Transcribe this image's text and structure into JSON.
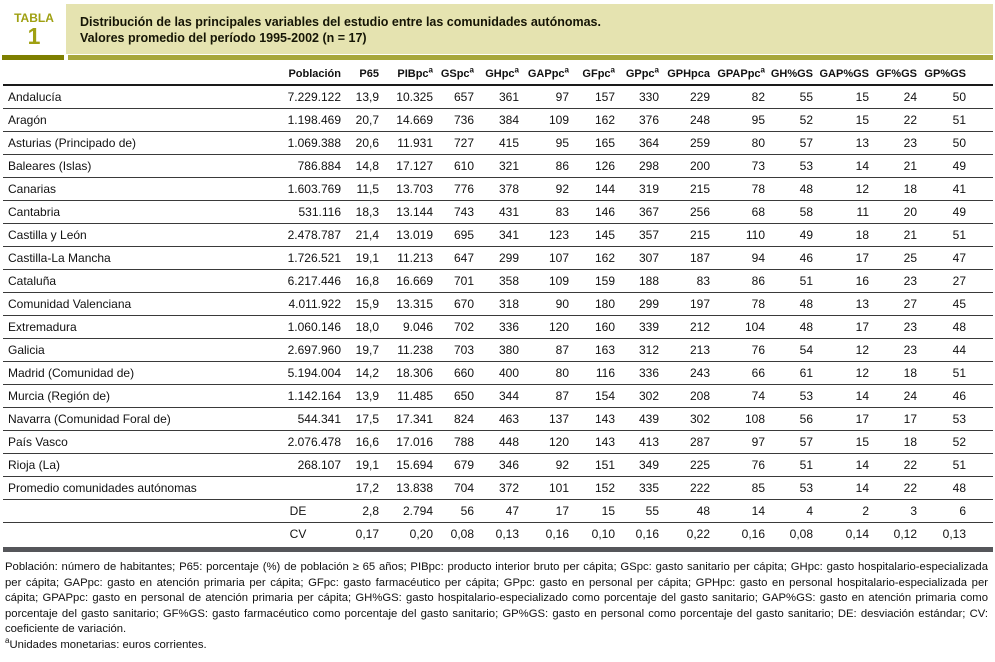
{
  "table_label": {
    "word": "TABLA",
    "number": "1"
  },
  "title": {
    "line1": "Distribución de las principales variables del estudio entre las comunidades autónomas.",
    "line2": "Valores promedio del período 1995-2002 (n = 17)"
  },
  "colors": {
    "accent_olive_text": "#9fa012",
    "title_box_bg": "#e5e3b0",
    "bar_dark_olive": "#7e7f00",
    "bar_light_olive": "#a7a73c",
    "bottom_bar_gray": "#55565a"
  },
  "table": {
    "columns": [
      {
        "text": "Población",
        "sup": ""
      },
      {
        "text": "P65",
        "sup": ""
      },
      {
        "text": "PIBpc",
        "sup": "a"
      },
      {
        "text": "GSpc",
        "sup": "a"
      },
      {
        "text": "GHpc",
        "sup": "a"
      },
      {
        "text": "GAPpc",
        "sup": "a"
      },
      {
        "text": "GFpc",
        "sup": "a"
      },
      {
        "text": "GPpc",
        "sup": "a"
      },
      {
        "text": "GPHpca",
        "sup": ""
      },
      {
        "text": "GPAPpc",
        "sup": "a"
      },
      {
        "text": "GH%GS",
        "sup": ""
      },
      {
        "text": "GAP%GS",
        "sup": ""
      },
      {
        "text": "GF%GS",
        "sup": ""
      },
      {
        "text": "GP%GS",
        "sup": ""
      }
    ],
    "rows": [
      {
        "label": "Andalucía",
        "cells": [
          "7.229.122",
          "13,9",
          "10.325",
          "657",
          "361",
          "97",
          "157",
          "330",
          "229",
          "82",
          "55",
          "15",
          "24",
          "50"
        ]
      },
      {
        "label": "Aragón",
        "cells": [
          "1.198.469",
          "20,7",
          "14.669",
          "736",
          "384",
          "109",
          "162",
          "376",
          "248",
          "95",
          "52",
          "15",
          "22",
          "51"
        ]
      },
      {
        "label": "Asturias (Principado de)",
        "cells": [
          "1.069.388",
          "20,6",
          "11.931",
          "727",
          "415",
          "95",
          "165",
          "364",
          "259",
          "80",
          "57",
          "13",
          "23",
          "50"
        ]
      },
      {
        "label": "Baleares (Islas)",
        "cells": [
          "786.884",
          "14,8",
          "17.127",
          "610",
          "321",
          "86",
          "126",
          "298",
          "200",
          "73",
          "53",
          "14",
          "21",
          "49"
        ]
      },
      {
        "label": "Canarias",
        "cells": [
          "1.603.769",
          "11,5",
          "13.703",
          "776",
          "378",
          "92",
          "144",
          "319",
          "215",
          "78",
          "48",
          "12",
          "18",
          "41"
        ]
      },
      {
        "label": "Cantabria",
        "cells": [
          "531.116",
          "18,3",
          "13.144",
          "743",
          "431",
          "83",
          "146",
          "367",
          "256",
          "68",
          "58",
          "11",
          "20",
          "49"
        ]
      },
      {
        "label": "Castilla y León",
        "cells": [
          "2.478.787",
          "21,4",
          "13.019",
          "695",
          "341",
          "123",
          "145",
          "357",
          "215",
          "110",
          "49",
          "18",
          "21",
          "51"
        ]
      },
      {
        "label": "Castilla-La Mancha",
        "cells": [
          "1.726.521",
          "19,1",
          "11.213",
          "647",
          "299",
          "107",
          "162",
          "307",
          "187",
          "94",
          "46",
          "17",
          "25",
          "47"
        ]
      },
      {
        "label": "Cataluña",
        "cells": [
          "6.217.446",
          "16,8",
          "16.669",
          "701",
          "358",
          "109",
          "159",
          "188",
          "83",
          "86",
          "51",
          "16",
          "23",
          "27"
        ]
      },
      {
        "label": "Comunidad Valenciana",
        "cells": [
          "4.011.922",
          "15,9",
          "13.315",
          "670",
          "318",
          "90",
          "180",
          "299",
          "197",
          "78",
          "48",
          "13",
          "27",
          "45"
        ]
      },
      {
        "label": "Extremadura",
        "cells": [
          "1.060.146",
          "18,0",
          "9.046",
          "702",
          "336",
          "120",
          "160",
          "339",
          "212",
          "104",
          "48",
          "17",
          "23",
          "48"
        ]
      },
      {
        "label": "Galicia",
        "cells": [
          "2.697.960",
          "19,7",
          "11.238",
          "703",
          "380",
          "87",
          "163",
          "312",
          "213",
          "76",
          "54",
          "12",
          "23",
          "44"
        ]
      },
      {
        "label": "Madrid (Comunidad de)",
        "cells": [
          "5.194.004",
          "14,2",
          "18.306",
          "660",
          "400",
          "80",
          "116",
          "336",
          "243",
          "66",
          "61",
          "12",
          "18",
          "51"
        ]
      },
      {
        "label": "Murcia (Región de)",
        "cells": [
          "1.142.164",
          "13,9",
          "11.485",
          "650",
          "344",
          "87",
          "154",
          "302",
          "208",
          "74",
          "53",
          "14",
          "24",
          "46"
        ]
      },
      {
        "label": "Navarra (Comunidad Foral de)",
        "cells": [
          "544.341",
          "17,5",
          "17.341",
          "824",
          "463",
          "137",
          "143",
          "439",
          "302",
          "108",
          "56",
          "17",
          "17",
          "53"
        ]
      },
      {
        "label": "País Vasco",
        "cells": [
          "2.076.478",
          "16,6",
          "17.016",
          "788",
          "448",
          "120",
          "143",
          "413",
          "287",
          "97",
          "57",
          "15",
          "18",
          "52"
        ]
      },
      {
        "label": "Rioja (La)",
        "cells": [
          "268.107",
          "19,1",
          "15.694",
          "679",
          "346",
          "92",
          "151",
          "349",
          "225",
          "76",
          "51",
          "14",
          "22",
          "51"
        ]
      },
      {
        "label": "Promedio comunidades autónomas",
        "cells": [
          "",
          "17,2",
          "13.838",
          "704",
          "372",
          "101",
          "152",
          "335",
          "222",
          "85",
          "53",
          "14",
          "22",
          "48"
        ]
      },
      {
        "label": "",
        "center_first": true,
        "cells": [
          "DE",
          "2,8",
          "2.794",
          "56",
          "47",
          "17",
          "15",
          "55",
          "48",
          "14",
          "4",
          "2",
          "3",
          "6"
        ]
      },
      {
        "label": "",
        "center_first": true,
        "cells": [
          "CV",
          "0,17",
          "0,20",
          "0,08",
          "0,13",
          "0,16",
          "0,10",
          "0,16",
          "0,22",
          "0,16",
          "0,08",
          "0,14",
          "0,12",
          "0,13"
        ]
      }
    ]
  },
  "footnotes": {
    "definitions": "Población: número de habitantes; P65: porcentaje (%) de población ≥ 65 años; PIBpc: producto interior bruto per cápita; GSpc: gasto sanitario per cápita; GHpc: gasto hospitalario-especializada per cápita; GAPpc: gasto en atención primaria per cápita; GFpc: gasto farmacéutico per cápita; GPpc: gasto en personal per cápita; GPHpc: gasto en personal hospitalario-especializada per cápita; GPAPpc: gasto en personal de atención primaria per cápita; GH%GS: gasto hospitalario-especializado como porcentaje del gasto sanitario; GAP%GS: gasto en atención primaria como porcentaje del gasto sanitario; GF%GS: gasto farmacéutico como porcentaje del gasto sanitario; GP%GS: gasto en personal como porcentaje del gasto sanitario; DE: desviación estándar; CV: coeficiente de variación.",
    "currency_sup": "a",
    "currency_text": "Unidades monetarias: euros corrientes."
  }
}
